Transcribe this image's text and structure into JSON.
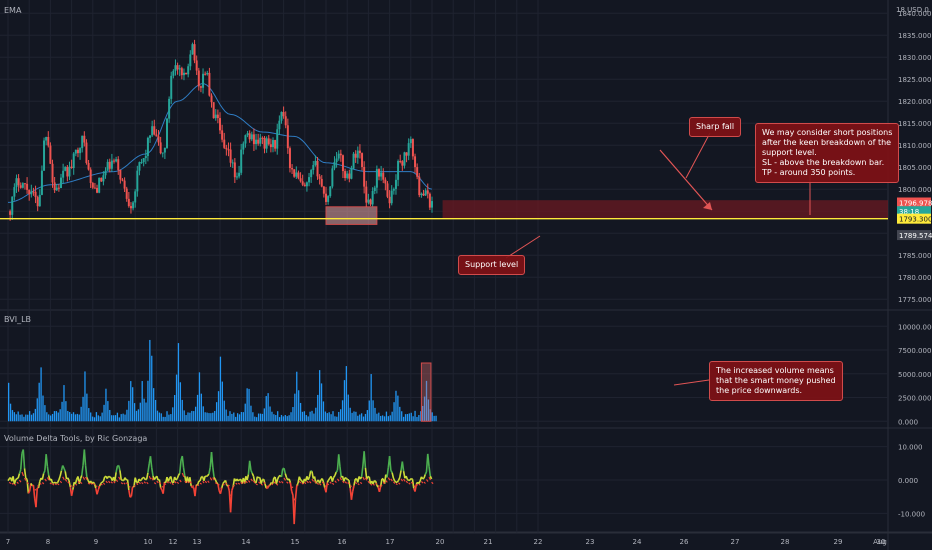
{
  "colors": {
    "background": "#131722",
    "grid": "#1f2330",
    "up": "#26a69a",
    "down": "#ef5350",
    "ema": "#2f7dc4",
    "support": "#ffeb3b",
    "volume": "#2196f3",
    "delta_up": "#4caf50",
    "delta_down": "#f44336",
    "delta_mid": "#cddc39",
    "callout": "#7f1116",
    "stop_zone": "#6b1a22",
    "target_zone": "#1b4d2b"
  },
  "panes": {
    "price_label": "EMA",
    "volume_label": "BVI_LB",
    "delta_label": "Volume Delta Tools, by Ric Gonzaga"
  },
  "axis": {
    "currency_label": "18 USD 0"
  },
  "annotations": {
    "support": "Support level",
    "sharp_fall": "Sharp fall",
    "short_note": [
      "We may consider short positions",
      "after the keen breakdown of the",
      "support level.",
      "SL - above the breakdown bar.",
      "TP - around 350 points."
    ],
    "volume_note": [
      "The increased volume means",
      "that the smart money pushed",
      "the price downwards."
    ]
  },
  "chart_data": [
    {
      "type": "candlestick",
      "pane": "price",
      "overlay": "EMA",
      "x_ticks": [
        "7",
        "8",
        "9",
        "10",
        "12",
        "13",
        "14",
        "15",
        "16",
        "17",
        "20",
        "21",
        "22",
        "23",
        "24",
        "26",
        "27",
        "28",
        "29",
        "30",
        "Aug"
      ],
      "y_ticks": [
        1775,
        1780,
        1785,
        1790,
        1795,
        1800,
        1805,
        1810,
        1815,
        1820,
        1825,
        1830,
        1835,
        1840
      ],
      "ylim": [
        1773,
        1843
      ],
      "price_labels": [
        {
          "text": "1796.978",
          "value": 1796.978,
          "color": "#ef5350"
        },
        {
          "text": "38:18",
          "value": 1795.0,
          "color": "#26a69a"
        },
        {
          "text": "1793.300",
          "value": 1793.3,
          "color": "#ffeb3b"
        },
        {
          "text": "1789.574",
          "value": 1789.574,
          "color": "#434651"
        }
      ],
      "support_level": 1793.3,
      "waypoints": [
        {
          "day": 7.0,
          "close": 1795
        },
        {
          "day": 7.5,
          "close": 1802
        },
        {
          "day": 8.0,
          "close": 1800
        },
        {
          "day": 8.4,
          "close": 1797
        },
        {
          "day": 8.8,
          "close": 1813
        },
        {
          "day": 9.2,
          "close": 1800
        },
        {
          "day": 9.8,
          "close": 1804
        },
        {
          "day": 10.5,
          "close": 1811
        },
        {
          "day": 11.0,
          "close": 1800
        },
        {
          "day": 12.0,
          "close": 1806
        },
        {
          "day": 12.8,
          "close": 1797
        },
        {
          "day": 13.3,
          "close": 1806
        },
        {
          "day": 13.8,
          "close": 1813
        },
        {
          "day": 14.3,
          "close": 1808
        },
        {
          "day": 14.8,
          "close": 1828
        },
        {
          "day": 15.3,
          "close": 1825
        },
        {
          "day": 15.7,
          "close": 1833
        },
        {
          "day": 16.0,
          "close": 1823
        },
        {
          "day": 16.3,
          "close": 1827
        },
        {
          "day": 16.7,
          "close": 1817
        },
        {
          "day": 17.3,
          "close": 1808
        },
        {
          "day": 17.8,
          "close": 1803
        },
        {
          "day": 18.2,
          "close": 1812
        },
        {
          "day": 19.5,
          "close": 1810
        },
        {
          "day": 20.0,
          "close": 1817
        },
        {
          "day": 20.4,
          "close": 1804
        },
        {
          "day": 21.0,
          "close": 1800
        },
        {
          "day": 21.5,
          "close": 1805
        },
        {
          "day": 22.0,
          "close": 1798
        },
        {
          "day": 22.5,
          "close": 1808
        },
        {
          "day": 23.0,
          "close": 1803
        },
        {
          "day": 23.5,
          "close": 1809
        },
        {
          "day": 24.0,
          "close": 1797
        },
        {
          "day": 24.5,
          "close": 1804
        },
        {
          "day": 25.0,
          "close": 1798
        },
        {
          "day": 25.5,
          "close": 1806
        },
        {
          "day": 26.0,
          "close": 1810
        },
        {
          "day": 26.4,
          "close": 1800
        },
        {
          "day": 27.0,
          "close": 1797
        }
      ],
      "ema_waypoints": [
        {
          "day": 7.0,
          "value": 1797
        },
        {
          "day": 9.0,
          "value": 1801
        },
        {
          "day": 12.0,
          "value": 1804
        },
        {
          "day": 13.5,
          "value": 1808
        },
        {
          "day": 15.0,
          "value": 1820
        },
        {
          "day": 16.2,
          "value": 1824
        },
        {
          "day": 17.5,
          "value": 1817
        },
        {
          "day": 19.0,
          "value": 1813
        },
        {
          "day": 20.5,
          "value": 1812
        },
        {
          "day": 22.0,
          "value": 1806
        },
        {
          "day": 24.0,
          "value": 1804
        },
        {
          "day": 26.0,
          "value": 1804
        },
        {
          "day": 27.0,
          "value": 1800
        }
      ],
      "support_zone": {
        "day_from": 22.0,
        "day_to": 24.4,
        "price_from": 1792,
        "price_to": 1796
      },
      "stop_zone": {
        "day_from": 27.5,
        "day_to": 31.0,
        "price_from": 1793.3,
        "price_to": 1797.5
      },
      "target_zone": {
        "day_from": 27.5,
        "day_to": 31.0,
        "price_from": 1775,
        "price_to": 1793.3
      }
    },
    {
      "type": "bar",
      "pane": "volume",
      "name": "BVI_LB",
      "y_ticks": [
        0,
        2500,
        5000,
        7500,
        10000
      ],
      "y_tick_labels": [
        "0.000",
        "2500.000",
        "5000.000",
        "7500.000",
        "10000.000"
      ],
      "ylim": [
        -500,
        11500
      ],
      "spikes": [
        {
          "day": 7.0,
          "value": 4300
        },
        {
          "day": 8.5,
          "value": 7600
        },
        {
          "day": 9.6,
          "value": 4400
        },
        {
          "day": 10.6,
          "value": 5500
        },
        {
          "day": 11.6,
          "value": 4000
        },
        {
          "day": 12.8,
          "value": 5800
        },
        {
          "day": 13.3,
          "value": 4500
        },
        {
          "day": 13.7,
          "value": 11400
        },
        {
          "day": 15.0,
          "value": 9300
        },
        {
          "day": 16.0,
          "value": 6400
        },
        {
          "day": 17.0,
          "value": 7700
        },
        {
          "day": 18.3,
          "value": 5000
        },
        {
          "day": 19.2,
          "value": 4200
        },
        {
          "day": 20.6,
          "value": 6500
        },
        {
          "day": 21.7,
          "value": 6700
        },
        {
          "day": 22.9,
          "value": 7300
        },
        {
          "day": 24.1,
          "value": 5100
        },
        {
          "day": 25.3,
          "value": 4900
        },
        {
          "day": 26.7,
          "value": 5500
        }
      ],
      "highlight": {
        "day_from": 26.5,
        "day_to": 26.95,
        "value_to": 5500
      }
    },
    {
      "type": "line",
      "pane": "delta",
      "name": "Volume Delta Tools",
      "y_ticks": [
        -10,
        0,
        10
      ],
      "y_tick_labels": [
        "-10.000",
        "0.000",
        "10.000"
      ],
      "ylim": [
        -15,
        15
      ],
      "spikes": [
        {
          "day": 7.7,
          "value": 12
        },
        {
          "day": 8.0,
          "value": -5
        },
        {
          "day": 8.3,
          "value": -10
        },
        {
          "day": 8.8,
          "value": 8
        },
        {
          "day": 9.6,
          "value": 7
        },
        {
          "day": 10.0,
          "value": -4
        },
        {
          "day": 10.6,
          "value": 9
        },
        {
          "day": 11.2,
          "value": -5
        },
        {
          "day": 12.2,
          "value": 6
        },
        {
          "day": 12.8,
          "value": -8
        },
        {
          "day": 13.7,
          "value": 9
        },
        {
          "day": 14.3,
          "value": -5
        },
        {
          "day": 15.2,
          "value": 10
        },
        {
          "day": 15.8,
          "value": -6
        },
        {
          "day": 16.6,
          "value": 8
        },
        {
          "day": 17.0,
          "value": -5
        },
        {
          "day": 17.5,
          "value": -9
        },
        {
          "day": 18.4,
          "value": 6
        },
        {
          "day": 19.2,
          "value": -4
        },
        {
          "day": 20.0,
          "value": 5
        },
        {
          "day": 20.5,
          "value": -13
        },
        {
          "day": 21.3,
          "value": 5
        },
        {
          "day": 22.0,
          "value": -4
        },
        {
          "day": 22.6,
          "value": 7
        },
        {
          "day": 23.2,
          "value": -6
        },
        {
          "day": 23.8,
          "value": 8
        },
        {
          "day": 24.5,
          "value": -5
        },
        {
          "day": 25.0,
          "value": 6
        },
        {
          "day": 25.6,
          "value": 5
        },
        {
          "day": 26.2,
          "value": -4
        },
        {
          "day": 26.8,
          "value": 7
        }
      ]
    }
  ]
}
